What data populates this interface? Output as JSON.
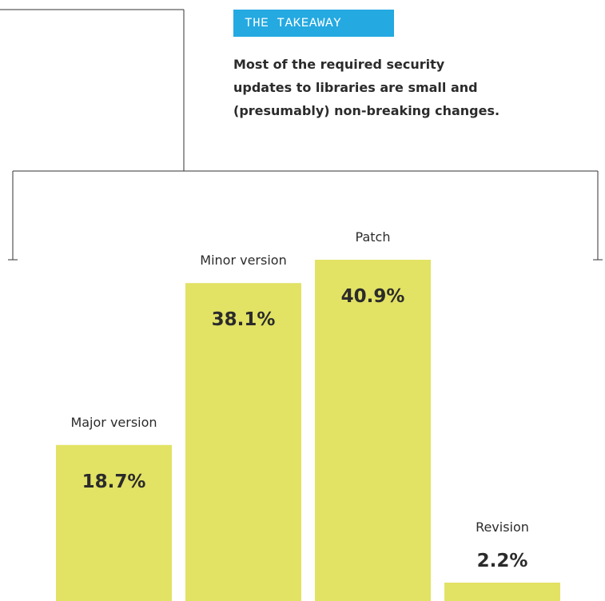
{
  "takeaway": {
    "badge": "THE TAKEAWAY",
    "badge_color": "#24a9e1",
    "lines": [
      "Most of the required security",
      "updates to libraries are small and",
      "(presumably) non-breaking changes."
    ]
  },
  "chart_data": {
    "type": "bar",
    "title": "",
    "xlabel": "",
    "ylabel": "",
    "categories": [
      "Major version",
      "Minor version",
      "Patch",
      "Revision"
    ],
    "values": [
      18.7,
      38.1,
      40.9,
      2.2
    ],
    "value_labels": [
      "18.7%",
      "38.1%",
      "40.9%",
      "2.2%"
    ],
    "ylim": [
      0,
      40.9
    ],
    "grid": false,
    "legend": "none",
    "bar_color": "#e2e264",
    "line_color": "#333333"
  }
}
